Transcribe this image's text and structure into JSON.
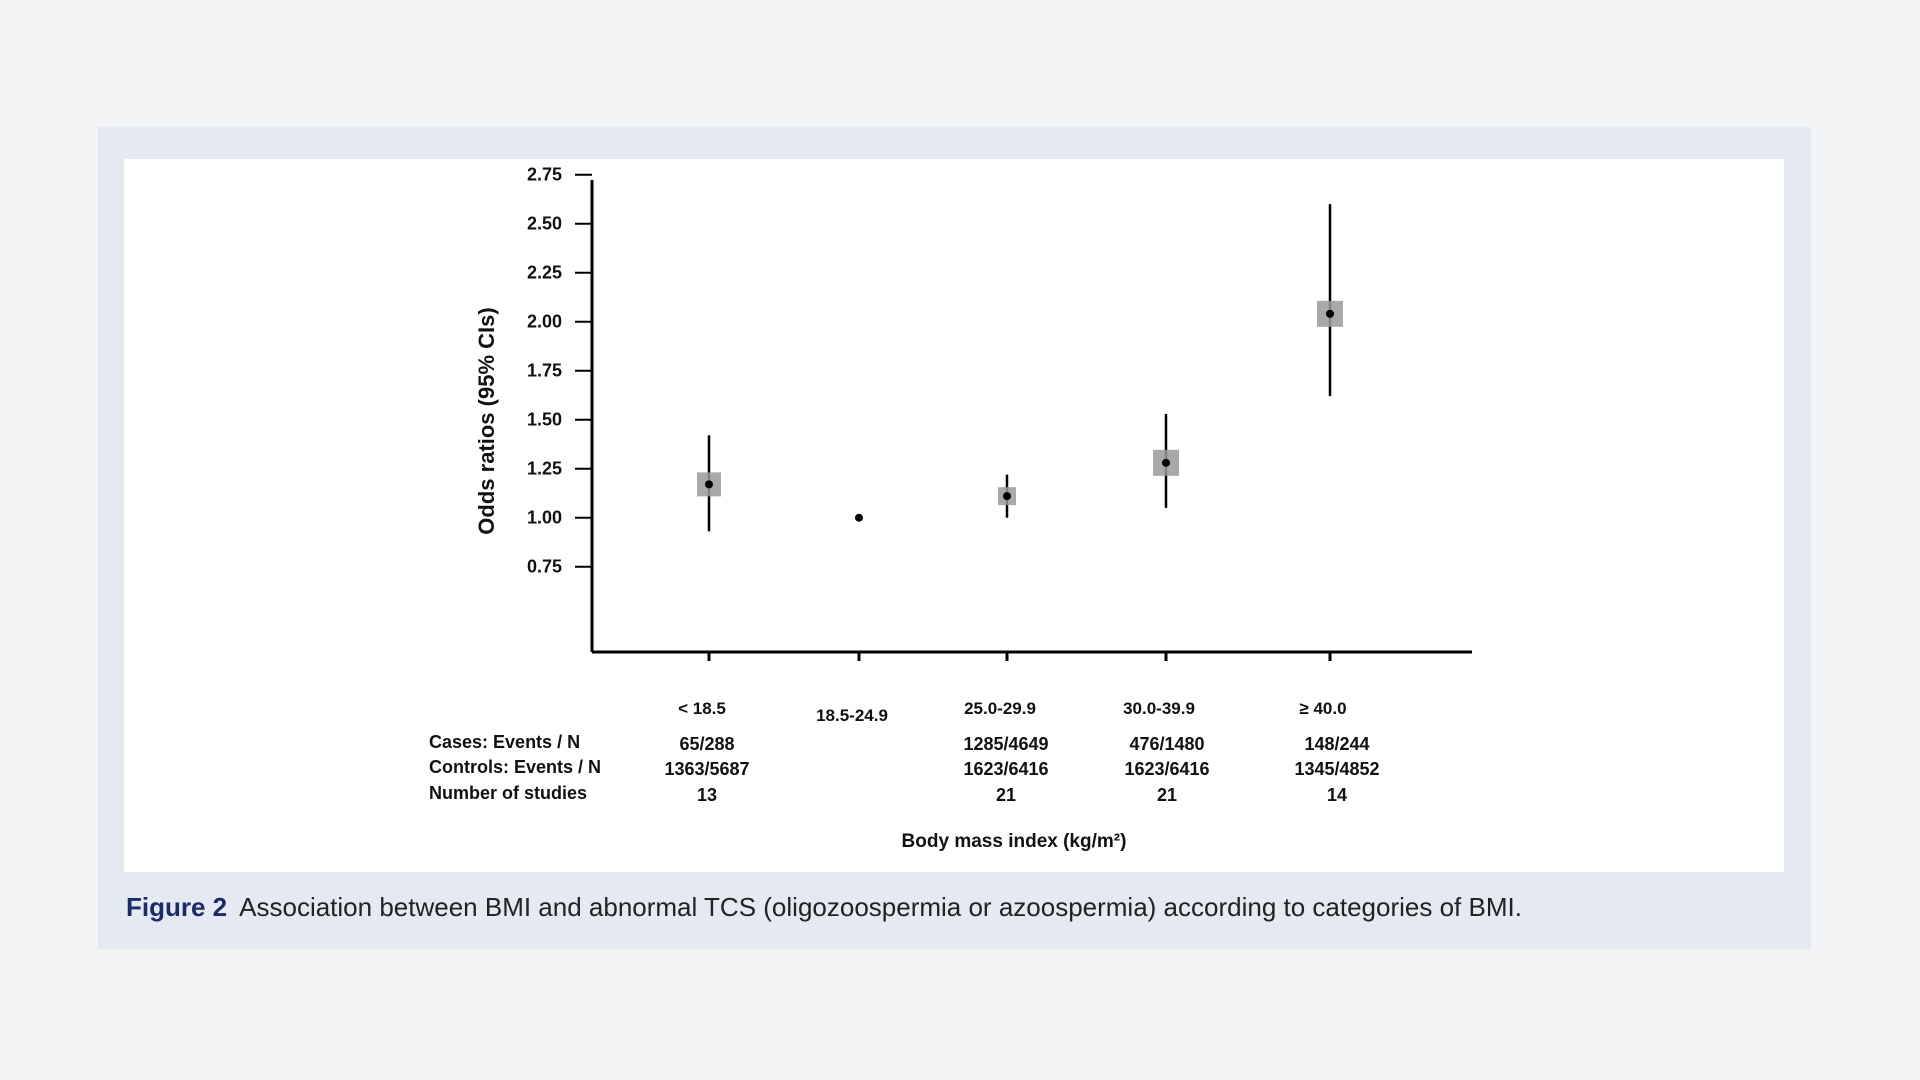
{
  "caption": {
    "label": "Figure 2",
    "text": "Association between BMI and abnormal TCS (oligozoospermia or azoospermia) according to categories of BMI."
  },
  "colors": {
    "panel": "#e4e9f2",
    "figure_label": "#1a2a6b",
    "marker": "#9a9a9a"
  },
  "chart_data": {
    "type": "scatter",
    "title": "",
    "xlabel": "Body mass index (kg/m²)",
    "ylabel": "Odds ratios (95% CIs)",
    "ylim": [
      0.5,
      2.9
    ],
    "yticks": [
      "0.75",
      "1.00",
      "1.25",
      "1.50",
      "1.75",
      "2.00",
      "2.25",
      "2.50",
      "2.75"
    ],
    "categories": [
      "< 18.5",
      "18.5-24.9",
      "25.0-29.9",
      "30.0-39.9",
      "≥ 40.0"
    ],
    "odds_ratio": [
      1.17,
      1.0,
      1.11,
      1.28,
      2.04
    ],
    "ci_lower": [
      0.93,
      1.0,
      1.0,
      1.05,
      1.62
    ],
    "ci_upper": [
      1.42,
      1.0,
      1.22,
      1.53,
      2.6
    ],
    "table": {
      "row_labels": [
        "Cases: Events / N",
        "Controls: Events / N",
        "Number of studies"
      ],
      "rows": [
        [
          "65/288",
          "",
          "1285/4649",
          "476/1480",
          "148/244"
        ],
        [
          "1363/5687",
          "",
          "1623/6416",
          "1623/6416",
          "1345/4852"
        ],
        [
          "13",
          "",
          "21",
          "21",
          "14"
        ]
      ]
    }
  }
}
